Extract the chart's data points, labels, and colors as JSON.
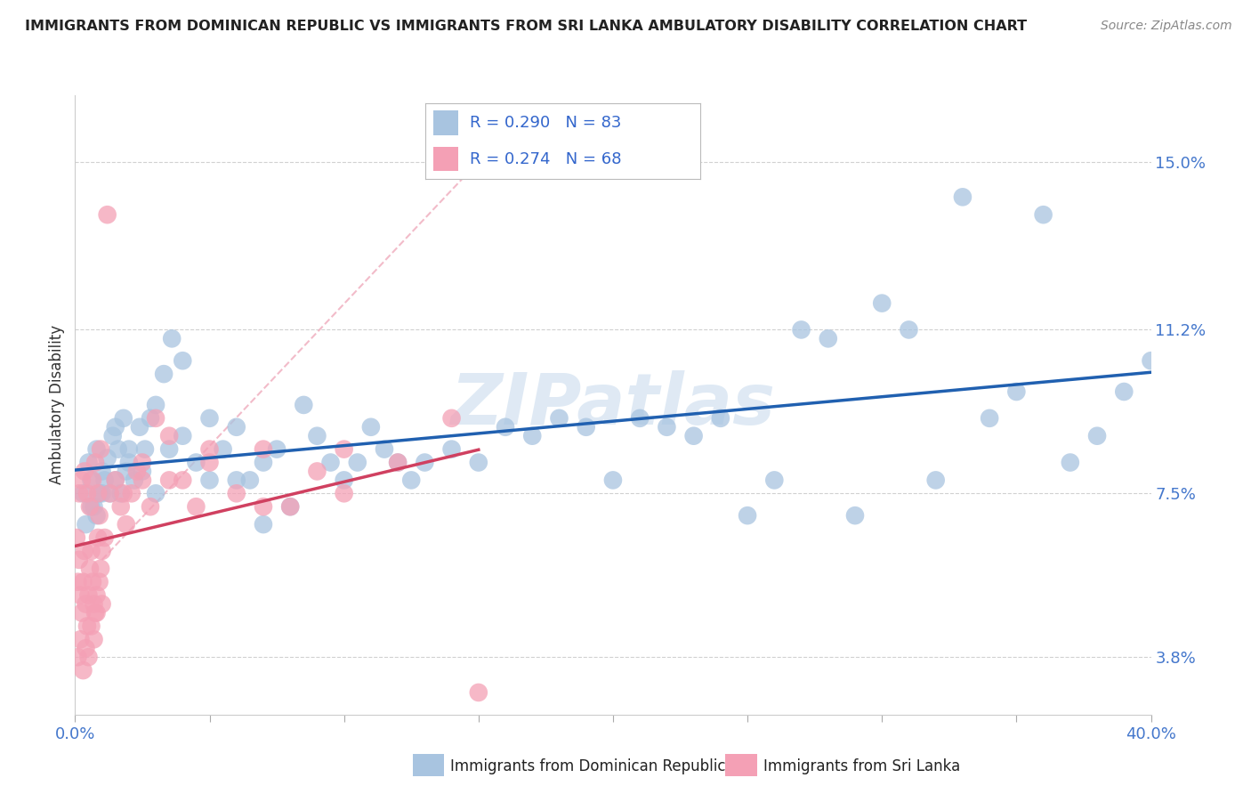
{
  "title": "IMMIGRANTS FROM DOMINICAN REPUBLIC VS IMMIGRANTS FROM SRI LANKA AMBULATORY DISABILITY CORRELATION CHART",
  "source": "Source: ZipAtlas.com",
  "ylabel": "Ambulatory Disability",
  "yticks": [
    3.8,
    7.5,
    11.2,
    15.0
  ],
  "xlim": [
    0.0,
    40.0
  ],
  "ylim": [
    2.5,
    16.5
  ],
  "dr_R": 0.29,
  "dr_N": 83,
  "sl_R": 0.274,
  "sl_N": 68,
  "blue_color": "#a8c4e0",
  "pink_color": "#f4a0b5",
  "blue_line_color": "#2060b0",
  "pink_line_color": "#d04060",
  "ref_line_color": "#f0b0c0",
  "watermark": "ZIPatlas",
  "legend_dr_label": "Immigrants from Dominican Republic",
  "legend_sl_label": "Immigrants from Sri Lanka",
  "dr_x": [
    0.3,
    0.5,
    0.6,
    0.7,
    0.8,
    0.9,
    1.0,
    1.1,
    1.2,
    1.3,
    1.4,
    1.5,
    1.6,
    1.7,
    1.8,
    1.9,
    2.0,
    2.2,
    2.4,
    2.6,
    2.8,
    3.0,
    3.3,
    3.6,
    4.0,
    4.5,
    5.0,
    5.5,
    6.0,
    6.5,
    7.0,
    7.5,
    8.0,
    8.5,
    9.0,
    9.5,
    10.0,
    10.5,
    11.0,
    11.5,
    12.0,
    12.5,
    13.0,
    14.0,
    15.0,
    16.0,
    17.0,
    18.0,
    19.0,
    20.0,
    21.0,
    22.0,
    23.0,
    24.0,
    25.0,
    26.0,
    27.0,
    28.0,
    29.0,
    30.0,
    31.0,
    32.0,
    33.0,
    34.0,
    35.0,
    36.0,
    37.0,
    38.0,
    39.0,
    40.0,
    0.4,
    0.6,
    0.8,
    1.0,
    1.5,
    2.0,
    2.5,
    3.0,
    3.5,
    4.0,
    5.0,
    6.0,
    7.0
  ],
  "dr_y": [
    7.5,
    8.2,
    7.8,
    7.2,
    8.5,
    7.5,
    8.0,
    7.8,
    8.3,
    7.5,
    8.8,
    9.0,
    8.5,
    7.5,
    9.2,
    8.0,
    8.5,
    7.8,
    9.0,
    8.5,
    9.2,
    9.5,
    10.2,
    11.0,
    10.5,
    8.2,
    7.8,
    8.5,
    9.0,
    7.8,
    8.2,
    8.5,
    7.2,
    9.5,
    8.8,
    8.2,
    7.8,
    8.2,
    9.0,
    8.5,
    8.2,
    7.8,
    8.2,
    8.5,
    8.2,
    9.0,
    8.8,
    9.2,
    9.0,
    7.8,
    9.2,
    9.0,
    8.8,
    9.2,
    7.0,
    7.8,
    11.2,
    11.0,
    7.0,
    11.8,
    11.2,
    7.8,
    14.2,
    9.2,
    9.8,
    13.8,
    8.2,
    8.8,
    9.8,
    10.5,
    6.8,
    7.2,
    7.0,
    7.5,
    7.8,
    8.2,
    8.0,
    7.5,
    8.5,
    8.8,
    9.2,
    7.8,
    6.8
  ],
  "sl_x": [
    0.05,
    0.1,
    0.15,
    0.2,
    0.25,
    0.3,
    0.35,
    0.4,
    0.45,
    0.5,
    0.55,
    0.6,
    0.65,
    0.7,
    0.75,
    0.8,
    0.85,
    0.9,
    0.95,
    1.0,
    0.1,
    0.2,
    0.3,
    0.4,
    0.5,
    0.6,
    0.7,
    0.8,
    0.9,
    1.0,
    0.15,
    0.25,
    0.35,
    0.45,
    0.55,
    0.65,
    0.75,
    0.85,
    0.95,
    1.1,
    1.3,
    1.5,
    1.7,
    1.9,
    2.1,
    2.3,
    2.5,
    2.8,
    3.0,
    3.5,
    4.0,
    4.5,
    5.0,
    6.0,
    7.0,
    8.0,
    9.0,
    10.0,
    12.0,
    14.0,
    1.2,
    1.8,
    2.5,
    3.5,
    5.0,
    7.0,
    10.0,
    15.0
  ],
  "sl_y": [
    6.5,
    5.5,
    6.0,
    5.2,
    4.8,
    5.5,
    6.2,
    5.0,
    4.5,
    5.2,
    5.8,
    6.2,
    5.5,
    5.0,
    4.8,
    5.2,
    6.5,
    7.0,
    5.8,
    6.2,
    3.8,
    4.2,
    3.5,
    4.0,
    3.8,
    4.5,
    4.2,
    4.8,
    5.5,
    5.0,
    7.5,
    7.8,
    8.0,
    7.5,
    7.2,
    7.8,
    8.2,
    7.5,
    8.5,
    6.5,
    7.5,
    7.8,
    7.2,
    6.8,
    7.5,
    8.0,
    7.8,
    7.2,
    9.2,
    8.8,
    7.8,
    7.2,
    8.2,
    7.5,
    8.5,
    7.2,
    8.0,
    7.5,
    8.2,
    9.2,
    13.8,
    7.5,
    8.2,
    7.8,
    8.5,
    7.2,
    8.5,
    3.0
  ]
}
